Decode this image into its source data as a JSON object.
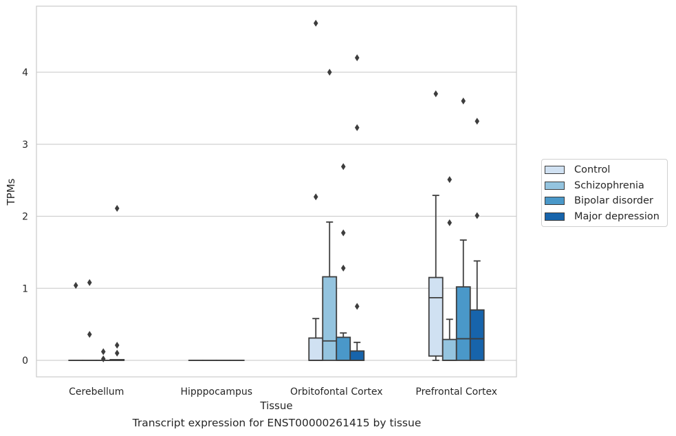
{
  "caption": "Transcript expression for ENST00000261415 by tissue",
  "chart_data": {
    "type": "box",
    "xlabel": "Tissue",
    "ylabel": "TPMs",
    "categories": [
      "Cerebellum",
      "Hipppocampus",
      "Orbitofontal Cortex",
      "Prefrontal Cortex"
    ],
    "ylim": [
      -0.22,
      4.9
    ],
    "yticks": [
      0,
      1,
      2,
      3,
      4
    ],
    "grid": "horizontal",
    "legend_position": "right",
    "series": [
      {
        "name": "Control",
        "color": "#d0e1f2",
        "boxes": [
          {
            "q1": 0,
            "median": 0,
            "q3": 0,
            "whisker_low": 0,
            "whisker_high": 0,
            "outliers": [
              1.04
            ]
          },
          {
            "q1": 0,
            "median": 0,
            "q3": 0,
            "whisker_low": 0,
            "whisker_high": 0,
            "outliers": []
          },
          {
            "q1": 0,
            "median": 0,
            "q3": 0.31,
            "whisker_low": 0,
            "whisker_high": 0.58,
            "outliers": [
              2.27,
              4.68
            ]
          },
          {
            "q1": 0.06,
            "median": 0.87,
            "q3": 1.15,
            "whisker_low": 0,
            "whisker_high": 2.29,
            "outliers": [
              3.7
            ]
          }
        ]
      },
      {
        "name": "Schizophrenia",
        "color": "#94c4df",
        "boxes": [
          {
            "q1": 0,
            "median": 0,
            "q3": 0,
            "whisker_low": 0,
            "whisker_high": 0,
            "outliers": [
              1.08,
              0.36
            ]
          },
          {
            "q1": 0,
            "median": 0,
            "q3": 0,
            "whisker_low": 0,
            "whisker_high": 0,
            "outliers": []
          },
          {
            "q1": 0,
            "median": 0.27,
            "q3": 1.16,
            "whisker_low": 0,
            "whisker_high": 1.92,
            "outliers": [
              4.0
            ]
          },
          {
            "q1": 0,
            "median": 0,
            "q3": 0.29,
            "whisker_low": 0,
            "whisker_high": 0.57,
            "outliers": [
              2.51,
              1.91
            ]
          }
        ]
      },
      {
        "name": "Bipolar disorder",
        "color": "#4a98c9",
        "boxes": [
          {
            "q1": 0,
            "median": 0,
            "q3": 0,
            "whisker_low": 0,
            "whisker_high": 0,
            "outliers": [
              0.12,
              0.02
            ]
          },
          {
            "q1": 0,
            "median": 0,
            "q3": 0,
            "whisker_low": 0,
            "whisker_high": 0,
            "outliers": []
          },
          {
            "q1": 0,
            "median": 0,
            "q3": 0.32,
            "whisker_low": 0,
            "whisker_high": 0.38,
            "outliers": [
              2.69,
              1.77,
              1.28
            ]
          },
          {
            "q1": 0,
            "median": 0.3,
            "q3": 1.02,
            "whisker_low": 0,
            "whisker_high": 1.67,
            "outliers": [
              3.6
            ]
          }
        ]
      },
      {
        "name": "Major depression",
        "color": "#1764ab",
        "boxes": [
          {
            "q1": 0,
            "median": 0,
            "q3": 0.01,
            "whisker_low": 0,
            "whisker_high": 0.01,
            "outliers": [
              2.11,
              0.21,
              0.1
            ]
          },
          {
            "q1": 0,
            "median": 0,
            "q3": 0,
            "whisker_low": 0,
            "whisker_high": 0,
            "outliers": []
          },
          {
            "q1": 0,
            "median": 0,
            "q3": 0.13,
            "whisker_low": 0,
            "whisker_high": 0.25,
            "outliers": [
              4.2,
              3.23,
              0.75
            ]
          },
          {
            "q1": 0,
            "median": 0.3,
            "q3": 0.7,
            "whisker_low": 0,
            "whisker_high": 1.38,
            "outliers": [
              3.32,
              2.01
            ]
          }
        ]
      }
    ]
  }
}
